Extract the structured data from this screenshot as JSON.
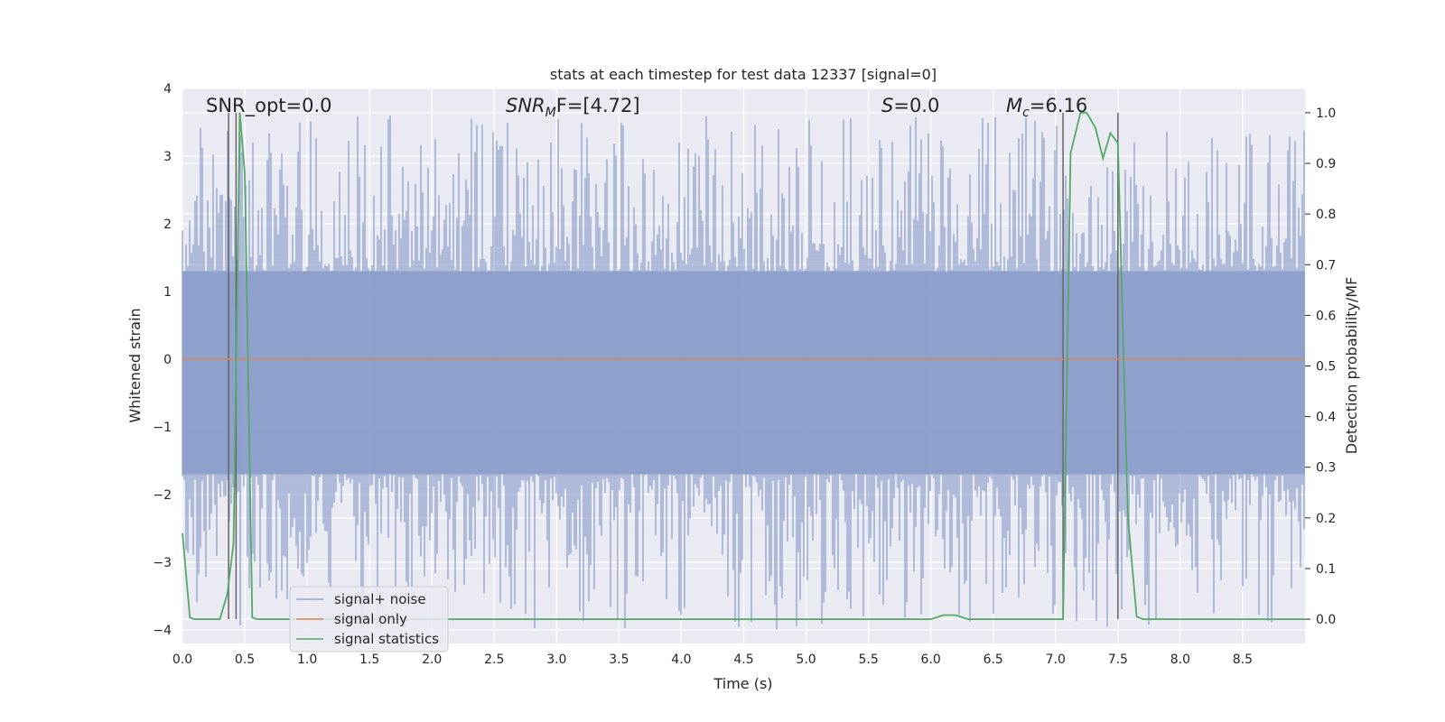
{
  "chart_data": {
    "type": "line",
    "title": "stats at each timestep for test data 12337 [signal=0]",
    "xlabel": "Time (s)",
    "ylabel": "Whitened strain",
    "y2label": "Detection probability/MF",
    "xlim": [
      0,
      9.0
    ],
    "ylim": [
      -4.2,
      4.0
    ],
    "y2lim": [
      -0.048,
      1.048
    ],
    "x_ticks": [
      0.0,
      0.5,
      1.0,
      1.5,
      2.0,
      2.5,
      3.0,
      3.5,
      4.0,
      4.5,
      5.0,
      5.5,
      6.0,
      6.5,
      7.0,
      7.5,
      8.0,
      8.5
    ],
    "x_tick_labels": [
      "0.0",
      "0.5",
      "1.0",
      "1.5",
      "2.0",
      "2.5",
      "3.0",
      "3.5",
      "4.0",
      "4.5",
      "5.0",
      "5.5",
      "6.0",
      "6.5",
      "7.0",
      "7.5",
      "8.0",
      "8.5"
    ],
    "y_ticks": [
      4,
      3,
      2,
      1,
      0,
      -1,
      -2,
      -3,
      -4
    ],
    "y_tick_labels": [
      "4",
      "3",
      "2",
      "1",
      "0",
      "−1",
      "−2",
      "−3",
      "−4"
    ],
    "y2_ticks": [
      1.0,
      0.9,
      0.8,
      0.7,
      0.6,
      0.5,
      0.4,
      0.3,
      0.2,
      0.1,
      0.0
    ],
    "y2_tick_labels": [
      "1.0",
      "0.9",
      "0.8",
      "0.7",
      "0.6",
      "0.5",
      "0.4",
      "0.3",
      "0.2",
      "0.1",
      "0.0"
    ],
    "annotations": {
      "snr_opt": "SNR_opt=0.0",
      "snr_mf_main": "SNR",
      "snr_mf_sub": "M",
      "snr_mf_rest": "F=[4.72]",
      "s_main": "S",
      "s_rest": "=0.0",
      "mc_main": "M",
      "mc_sub": "c",
      "mc_rest": "=6.16"
    },
    "vertical_lines": [
      0.37,
      0.43,
      7.06,
      7.5
    ],
    "series": [
      {
        "name": "signal+ noise",
        "color": "#8da0cb",
        "noise_envelope": {
          "upper": 1.3,
          "lower": -1.7,
          "peak_up": 3.6,
          "peak_down": -4.0
        }
      },
      {
        "name": "signal only",
        "color": "#dd8452",
        "value": 0.0
      },
      {
        "name": "signal statistics",
        "color": "#55a868",
        "axis": "right",
        "x": [
          0.0,
          0.06,
          0.1,
          0.3,
          0.36,
          0.41,
          0.46,
          0.5,
          0.56,
          0.6,
          1.0,
          2.0,
          3.0,
          4.0,
          5.0,
          6.0,
          6.1,
          6.2,
          6.3,
          6.4,
          7.0,
          7.06,
          7.12,
          7.2,
          7.25,
          7.32,
          7.38,
          7.44,
          7.5,
          7.58,
          7.65,
          7.7,
          8.0,
          9.0
        ],
        "values": [
          0.17,
          0.003,
          0.0,
          0.0,
          0.05,
          0.15,
          1.0,
          0.88,
          0.003,
          0.0,
          0.0,
          0.0,
          0.0,
          0.0,
          0.0,
          0.0,
          0.008,
          0.008,
          0.0,
          0.0,
          0.0,
          0.0,
          0.92,
          1.0,
          1.0,
          0.97,
          0.91,
          0.96,
          0.94,
          0.2,
          0.005,
          0.0,
          0.0,
          0.0
        ]
      }
    ],
    "legend": {
      "placement": "lower-left",
      "items": [
        "signal+ noise",
        "signal only",
        "signal statistics"
      ]
    }
  }
}
